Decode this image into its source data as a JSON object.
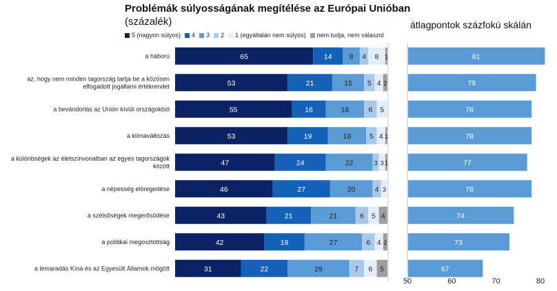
{
  "chart_data": [
    {
      "type": "bar",
      "orientation": "horizontal",
      "stacked": true,
      "title": "Problémák súlyosságának megítélése az Európai Unióban",
      "subtitle": "(százalék)",
      "legend_position": "top",
      "categories": [
        "a háború",
        "az, hogy nem minden tagország tartja be a közösen elfogadott jogállami értékrendet",
        "a bevándorlás az Unión kívüli országokból",
        "a klímaváltozás",
        "a különbségek az életszínvonalban az egyes tagországok között",
        "a népesség elöregedése",
        "a szélsőségek megerősödése",
        "a politikai megosztottság",
        "a lemaradás Kína és az Egyesült Államok mögött"
      ],
      "category_lines": [
        [
          "a háború"
        ],
        [
          "az, hogy nem minden tagország tartja be a közösen",
          "elfogadott jogállami értékrendet"
        ],
        [
          "a bevándorlás az Unión kívüli országokból"
        ],
        [
          "a klímaváltozás"
        ],
        [
          "a különbségek az életszínvonalban az egyes tagországok",
          "között"
        ],
        [
          "a népesség elöregedése"
        ],
        [
          "a szélsőségek megerősödése"
        ],
        [
          "a politikai megosztottság"
        ],
        [
          "a lemaradás Kína és az Egyesült Államok mögött"
        ]
      ],
      "series": [
        {
          "name": "5 (nagyon súlyos)",
          "color": "#0b2265",
          "label_color": "#ffffff",
          "values": [
            65,
            53,
            55,
            53,
            47,
            46,
            43,
            42,
            31
          ]
        },
        {
          "name": "4",
          "color": "#1461b8",
          "label_color": "#ffffff",
          "values": [
            14,
            21,
            16,
            19,
            24,
            27,
            21,
            19,
            22
          ]
        },
        {
          "name": "3",
          "color": "#5b9bd5",
          "label_color": "#222222",
          "values": [
            8,
            15,
            18,
            18,
            22,
            20,
            21,
            27,
            29
          ]
        },
        {
          "name": "2",
          "color": "#a9c9eb",
          "label_color": "#222222",
          "values": [
            4,
            5,
            6,
            5,
            3,
            4,
            6,
            6,
            7
          ]
        },
        {
          "name": "1 (egyáltalán nem súlyos)",
          "color": "#e3eefa",
          "label_color": "#222222",
          "values": [
            8,
            4,
            5,
            4,
            3,
            3,
            5,
            4,
            6
          ]
        },
        {
          "name": "nem tudja, nem válaszol",
          "color": "#9e9e9e",
          "label_color": "#222222",
          "values": [
            1,
            2,
            0,
            1,
            1,
            0,
            4,
            2,
            5
          ]
        }
      ],
      "xlim": [
        0,
        100
      ],
      "grid": false
    },
    {
      "type": "bar",
      "orientation": "horizontal",
      "title": "átlagpontok százfokú skálán",
      "color": "#5b9bd5",
      "values": [
        81,
        79,
        78,
        78,
        77,
        78,
        74,
        73,
        67
      ],
      "xlim": [
        50,
        80
      ],
      "xticks": [
        50,
        60,
        70,
        80
      ],
      "grid": false
    }
  ]
}
